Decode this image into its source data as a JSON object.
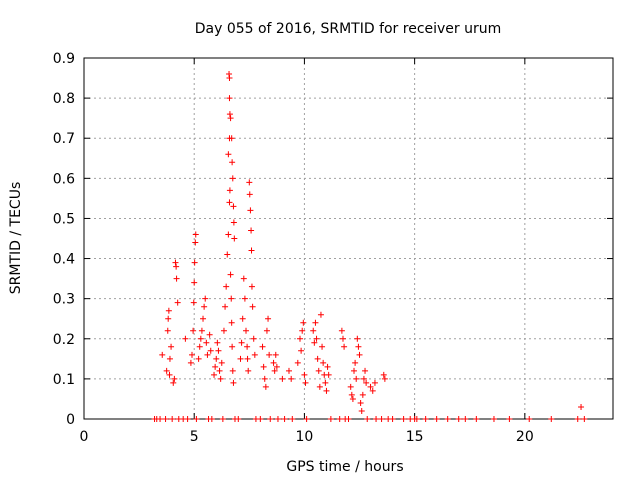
{
  "chart_data": {
    "type": "scatter",
    "title": "Day 055 of 2016, SRMTID for receiver urum",
    "xlabel": "GPS time / hours",
    "ylabel": "SRMTID / TECUs",
    "xlim": [
      0,
      24
    ],
    "ylim": [
      0,
      0.9
    ],
    "x_ticks": [
      0,
      5,
      10,
      15,
      20
    ],
    "x_tick_labels": [
      "0",
      "5",
      "10",
      "15",
      "20"
    ],
    "y_ticks": [
      0,
      0.1,
      0.2,
      0.3,
      0.4,
      0.5,
      0.6,
      0.7,
      0.8,
      0.9
    ],
    "y_tick_labels": [
      "0",
      "0.1",
      "0.2",
      "0.3",
      "0.4",
      "0.5",
      "0.6",
      "0.7",
      "0.8",
      "0.9"
    ],
    "grid": true,
    "marker": "+",
    "color": "#ff0000",
    "series": [
      {
        "name": "SRMTID",
        "points": [
          [
            3.2,
            0
          ],
          [
            3.3,
            0
          ],
          [
            3.45,
            0
          ],
          [
            3.55,
            0.16
          ],
          [
            3.7,
            0
          ],
          [
            3.75,
            0.12
          ],
          [
            3.8,
            0.22
          ],
          [
            3.82,
            0.25
          ],
          [
            3.85,
            0.27
          ],
          [
            3.88,
            0.11
          ],
          [
            3.9,
            0.15
          ],
          [
            3.95,
            0.18
          ],
          [
            4.0,
            0
          ],
          [
            4.05,
            0.09
          ],
          [
            4.1,
            0.1
          ],
          [
            4.15,
            0.39
          ],
          [
            4.18,
            0.38
          ],
          [
            4.2,
            0.35
          ],
          [
            4.25,
            0.29
          ],
          [
            4.3,
            0
          ],
          [
            4.5,
            0
          ],
          [
            4.6,
            0.2
          ],
          [
            4.7,
            0
          ],
          [
            4.85,
            0.14
          ],
          [
            4.9,
            0.16
          ],
          [
            4.95,
            0.22
          ],
          [
            4.98,
            0.29
          ],
          [
            5.0,
            0.34
          ],
          [
            5.02,
            0.39
          ],
          [
            5.05,
            0.44
          ],
          [
            5.07,
            0.46
          ],
          [
            5.1,
            0
          ],
          [
            5.2,
            0.15
          ],
          [
            5.25,
            0.18
          ],
          [
            5.3,
            0.2
          ],
          [
            5.35,
            0.22
          ],
          [
            5.4,
            0.25
          ],
          [
            5.45,
            0.28
          ],
          [
            5.5,
            0.3
          ],
          [
            5.55,
            0.19
          ],
          [
            5.6,
            0.16
          ],
          [
            5.65,
            0
          ],
          [
            5.7,
            0.21
          ],
          [
            5.75,
            0.17
          ],
          [
            5.8,
            0
          ],
          [
            5.9,
            0.11
          ],
          [
            5.95,
            0.13
          ],
          [
            6.0,
            0.15
          ],
          [
            6.05,
            0.19
          ],
          [
            6.1,
            0.17
          ],
          [
            6.15,
            0.12
          ],
          [
            6.2,
            0.1
          ],
          [
            6.25,
            0.14
          ],
          [
            6.3,
            0
          ],
          [
            6.35,
            0.22
          ],
          [
            6.4,
            0.28
          ],
          [
            6.45,
            0.33
          ],
          [
            6.5,
            0.41
          ],
          [
            6.55,
            0.46
          ],
          [
            6.6,
            0.54
          ],
          [
            6.62,
            0.57
          ],
          [
            6.55,
            0.66
          ],
          [
            6.6,
            0.7
          ],
          [
            6.62,
            0.76
          ],
          [
            6.6,
            0.8
          ],
          [
            6.58,
            0.86
          ],
          [
            6.6,
            0.85
          ],
          [
            6.65,
            0.75
          ],
          [
            6.7,
            0.7
          ],
          [
            6.72,
            0.64
          ],
          [
            6.75,
            0.6
          ],
          [
            6.78,
            0.53
          ],
          [
            6.8,
            0.49
          ],
          [
            6.82,
            0.45
          ],
          [
            6.65,
            0.36
          ],
          [
            6.68,
            0.3
          ],
          [
            6.7,
            0.24
          ],
          [
            6.72,
            0.18
          ],
          [
            6.75,
            0.12
          ],
          [
            6.78,
            0.09
          ],
          [
            6.85,
            0
          ],
          [
            7.0,
            0
          ],
          [
            7.1,
            0.15
          ],
          [
            7.15,
            0.19
          ],
          [
            7.2,
            0.25
          ],
          [
            7.25,
            0.35
          ],
          [
            7.3,
            0.3
          ],
          [
            7.35,
            0.22
          ],
          [
            7.4,
            0.18
          ],
          [
            7.42,
            0.15
          ],
          [
            7.45,
            0.12
          ],
          [
            7.5,
            0.59
          ],
          [
            7.52,
            0.56
          ],
          [
            7.55,
            0.52
          ],
          [
            7.58,
            0.47
          ],
          [
            7.6,
            0.42
          ],
          [
            7.62,
            0.33
          ],
          [
            7.65,
            0.28
          ],
          [
            7.7,
            0.2
          ],
          [
            7.75,
            0.16
          ],
          [
            7.8,
            0
          ],
          [
            8.0,
            0
          ],
          [
            8.1,
            0.18
          ],
          [
            8.15,
            0.13
          ],
          [
            8.2,
            0.1
          ],
          [
            8.25,
            0.08
          ],
          [
            8.3,
            0.22
          ],
          [
            8.35,
            0.25
          ],
          [
            8.4,
            0.16
          ],
          [
            8.45,
            0
          ],
          [
            8.6,
            0.14
          ],
          [
            8.65,
            0.12
          ],
          [
            8.7,
            0.16
          ],
          [
            8.75,
            0.13
          ],
          [
            8.8,
            0
          ],
          [
            9.0,
            0.1
          ],
          [
            9.1,
            0
          ],
          [
            9.3,
            0.12
          ],
          [
            9.4,
            0.1
          ],
          [
            9.45,
            0
          ],
          [
            9.7,
            0.14
          ],
          [
            9.8,
            0.2
          ],
          [
            9.85,
            0.17
          ],
          [
            9.9,
            0.22
          ],
          [
            9.95,
            0.24
          ],
          [
            10.0,
            0.11
          ],
          [
            10.05,
            0.09
          ],
          [
            10.1,
            0
          ],
          [
            10.4,
            0.22
          ],
          [
            10.45,
            0.19
          ],
          [
            10.5,
            0.24
          ],
          [
            10.55,
            0.2
          ],
          [
            10.6,
            0.15
          ],
          [
            10.65,
            0.12
          ],
          [
            10.7,
            0.08
          ],
          [
            10.75,
            0.26
          ],
          [
            10.8,
            0.18
          ],
          [
            10.85,
            0.14
          ],
          [
            10.9,
            0.11
          ],
          [
            10.95,
            0.09
          ],
          [
            11.0,
            0.07
          ],
          [
            11.05,
            0.13
          ],
          [
            11.1,
            0.11
          ],
          [
            11.2,
            0
          ],
          [
            11.6,
            0
          ],
          [
            11.7,
            0.22
          ],
          [
            11.75,
            0.2
          ],
          [
            11.8,
            0.18
          ],
          [
            11.85,
            0
          ],
          [
            12.0,
            0
          ],
          [
            12.1,
            0.08
          ],
          [
            12.15,
            0.06
          ],
          [
            12.2,
            0.05
          ],
          [
            12.25,
            0.12
          ],
          [
            12.3,
            0.14
          ],
          [
            12.35,
            0.1
          ],
          [
            12.4,
            0.2
          ],
          [
            12.45,
            0.18
          ],
          [
            12.5,
            0.16
          ],
          [
            12.55,
            0.04
          ],
          [
            12.6,
            0.02
          ],
          [
            12.65,
            0.06
          ],
          [
            12.7,
            0.1
          ],
          [
            12.75,
            0.12
          ],
          [
            12.8,
            0.09
          ],
          [
            12.85,
            0
          ],
          [
            13.0,
            0.08
          ],
          [
            13.1,
            0.07
          ],
          [
            13.2,
            0.09
          ],
          [
            13.25,
            0
          ],
          [
            13.5,
            0
          ],
          [
            13.6,
            0.11
          ],
          [
            13.65,
            0.1
          ],
          [
            13.8,
            0
          ],
          [
            14.0,
            0
          ],
          [
            14.5,
            0
          ],
          [
            14.8,
            0
          ],
          [
            15.0,
            0
          ],
          [
            15.1,
            0
          ],
          [
            15.5,
            0
          ],
          [
            16.0,
            0
          ],
          [
            16.5,
            0
          ],
          [
            17.0,
            0
          ],
          [
            17.3,
            0
          ],
          [
            17.8,
            0
          ],
          [
            18.6,
            0
          ],
          [
            19.3,
            0
          ],
          [
            20.2,
            0
          ],
          [
            21.2,
            0
          ],
          [
            22.4,
            0
          ],
          [
            22.55,
            0.03
          ],
          [
            22.7,
            0
          ]
        ]
      }
    ]
  }
}
